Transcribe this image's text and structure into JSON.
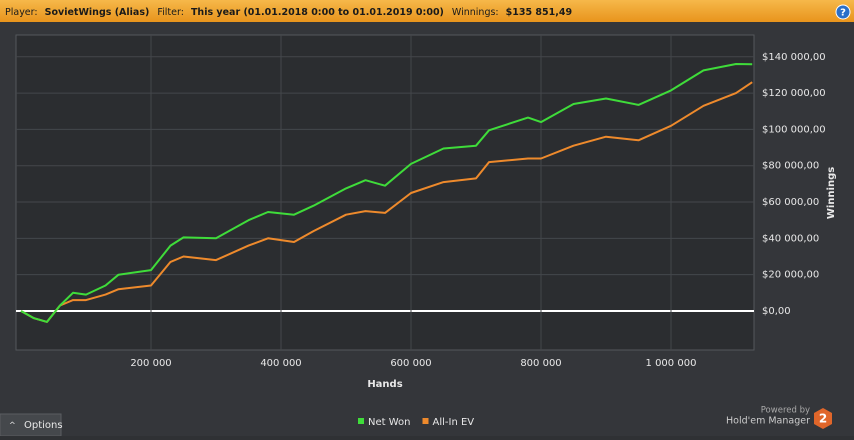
{
  "header": {
    "player_label": "Player:",
    "player": "SovietWings (Alias)",
    "filter_label": "Filter:",
    "filter": "This year (01.01.2018 0:00 to 01.01.2019 0:00)",
    "winnings_label": "Winnings:",
    "winnings": "$135 851,49",
    "help": "?"
  },
  "chart_data": {
    "type": "line",
    "x_label": "Hands",
    "y_label": "Winnings",
    "x": [
      0,
      20000,
      40000,
      60000,
      80000,
      100000,
      130000,
      150000,
      200000,
      230000,
      250000,
      300000,
      350000,
      380000,
      420000,
      450000,
      500000,
      530000,
      560000,
      600000,
      650000,
      700000,
      720000,
      780000,
      800000,
      850000,
      900000,
      950000,
      1000000,
      1050000,
      1100000,
      1125000
    ],
    "series": [
      {
        "name": "Net Won",
        "color": "#3fdc3a",
        "values": [
          0,
          -4000,
          -6000,
          3000,
          10000,
          9000,
          14000,
          20000,
          22500,
          36000,
          40500,
          40000,
          50000,
          54500,
          53000,
          58000,
          67500,
          72000,
          69000,
          81000,
          89500,
          91000,
          99500,
          106500,
          104000,
          114000,
          117000,
          113500,
          121500,
          132500,
          136000,
          135900
        ]
      },
      {
        "name": "All-In EV",
        "color": "#ee8a2c",
        "values": [
          0,
          -4000,
          -6000,
          3000,
          6000,
          6000,
          9000,
          12000,
          14000,
          27000,
          30000,
          28000,
          36000,
          40000,
          38000,
          44000,
          53000,
          55000,
          54000,
          65000,
          71000,
          73000,
          82000,
          84000,
          84000,
          91000,
          96000,
          94000,
          102000,
          113000,
          120000,
          126000
        ]
      }
    ],
    "xlim": [
      -7700,
      1127700
    ],
    "ylim": [
      -21500,
      152000
    ],
    "xticks": [
      {
        "value": 200000,
        "label": "200 000"
      },
      {
        "value": 400000,
        "label": "400 000"
      },
      {
        "value": 600000,
        "label": "600 000"
      },
      {
        "value": 800000,
        "label": "800 000"
      },
      {
        "value": 1000000,
        "label": "1 000 000"
      }
    ],
    "yticks": [
      {
        "value": 0,
        "label": "$0,00"
      },
      {
        "value": 20000,
        "label": "$20 000,00"
      },
      {
        "value": 40000,
        "label": "$40 000,00"
      },
      {
        "value": 60000,
        "label": "$60 000,00"
      },
      {
        "value": 80000,
        "label": "$80 000,00"
      },
      {
        "value": 100000,
        "label": "$100 000,00"
      },
      {
        "value": 120000,
        "label": "$120 000,00"
      },
      {
        "value": 140000,
        "label": "$140 000,00"
      }
    ],
    "grid": true,
    "legend": "bottom"
  },
  "footer": {
    "options": "Options",
    "powered_by": "Powered by",
    "brand": "Hold'em Manager",
    "brand_logo": "2"
  }
}
